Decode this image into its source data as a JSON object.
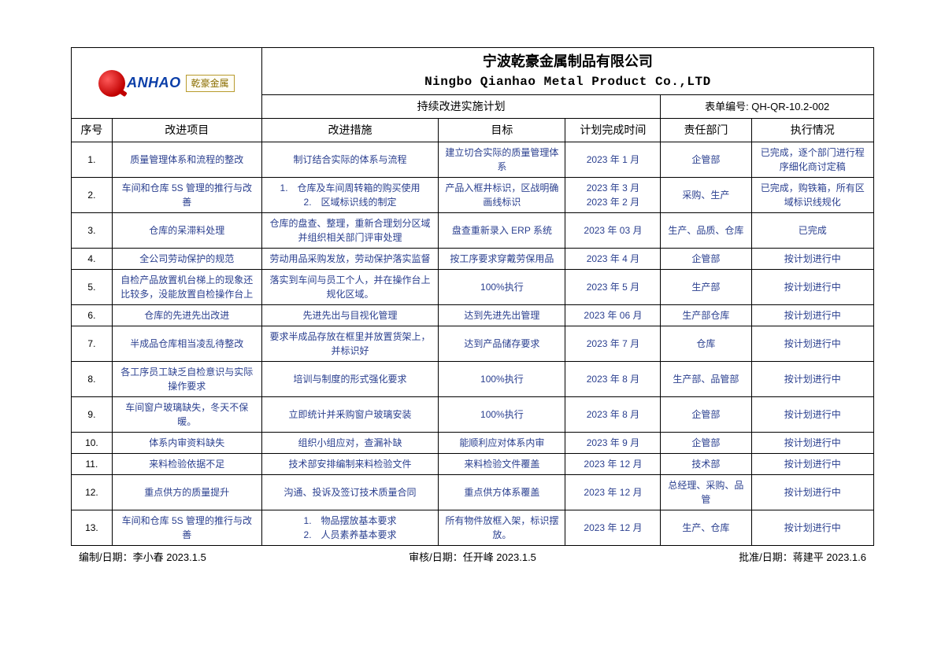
{
  "logo": {
    "brand_en": "ANHAO",
    "brand_cn": "乾豪金属"
  },
  "company": {
    "cn": "宁波乾豪金属制品有限公司",
    "en": "Ningbo Qianhao Metal Product Co.,LTD"
  },
  "subtitle": "持续改进实施计划",
  "form_no": "表单编号: QH-QR-10.2-002",
  "columns": {
    "seq": "序号",
    "item": "改进项目",
    "measure": "改进措施",
    "target": "目标",
    "date": "计划完成时间",
    "dept": "责任部门",
    "status": "执行情况"
  },
  "rows": [
    {
      "seq": "1.",
      "item": "质量管理体系和流程的整改",
      "measure": "制订结合实际的体系与流程",
      "target": "建立切合实际的质量管理体系",
      "date": "2023 年 1 月",
      "dept": "企管部",
      "status": "已完成，逐个部门进行程序细化商讨定稿"
    },
    {
      "seq": "2.",
      "item": "车间和仓库 5S 管理的推行与改善",
      "measure": "1.　仓库及车间周转箱的购买使用\n2.　区域标识线的制定",
      "target": "产品入框井标识，区战明确画线标识",
      "date": "2023 年 3 月\n2023 年 2 月",
      "dept": "采购、生产",
      "status": "已完成，购铁箱，所有区域标识线规化"
    },
    {
      "seq": "3.",
      "item": "仓库的呆滞料处理",
      "measure": "仓库的盘查、整理，重新合理划分区域并组织相关部门评审处理",
      "target": "盘查重新录入 ERP 系统",
      "date": "2023 年 03 月",
      "dept": "生产、品质、仓库",
      "status": "已完成"
    },
    {
      "seq": "4.",
      "item": "全公司劳动保护的规范",
      "measure": "劳动用品采购发放，劳动保护落实监督",
      "target": "按工序要求穿戴劳保用品",
      "date": "2023 年 4 月",
      "dept": "企管部",
      "status": "按计划进行中"
    },
    {
      "seq": "5.",
      "item": "自检产品放置机台梯上的现象还比较多，没能放置自检操作台上",
      "measure": "落实到车间与员工个人，并在操作台上规化区域。",
      "target": "100%执行",
      "date": "2023 年 5 月",
      "dept": "生产部",
      "status": "按计划进行中"
    },
    {
      "seq": "6.",
      "item": "仓库的先进先出改进",
      "measure": "先进先出与目视化管理",
      "target": "达到先进先出管理",
      "date": "2023 年 06 月",
      "dept": "生产部仓库",
      "status": "按计划进行中"
    },
    {
      "seq": "7.",
      "item": "半成品仓库相当凌乱待整改",
      "measure": "要求半成品存放在框里并放置货架上，并标识好",
      "target": "达到产品储存要求",
      "date": "2023 年 7 月",
      "dept": "仓库",
      "status": "按计划进行中"
    },
    {
      "seq": "8.",
      "item": "各工序员工缺乏自检意识与实际操作要求",
      "measure": "培训与制度的形式强化要求",
      "target": "100%执行",
      "date": "2023 年 8 月",
      "dept": "生产部、品管部",
      "status": "按计划进行中"
    },
    {
      "seq": "9.",
      "item": "车间窗户玻璃缺失，冬天不保暖。",
      "measure": "立即统计并釆购窗户玻璃安装",
      "target": "100%执行",
      "date": "2023 年 8 月",
      "dept": "企管部",
      "status": "按计划进行中"
    },
    {
      "seq": "10.",
      "item": "体系内审资料缺失",
      "measure": "组织小组应对，查漏补缺",
      "target": "能顺利应对体系内审",
      "date": "2023 年 9 月",
      "dept": "企管部",
      "status": "按计划进行中"
    },
    {
      "seq": "11.",
      "item": "来料检验依据不足",
      "measure": "技术部安排编制来料检验文件",
      "target": "来料检验文件覆盖",
      "date": "2023 年 12 月",
      "dept": "技术部",
      "status": "按计划进行中"
    },
    {
      "seq": "12.",
      "item": "重点供方的质量提升",
      "measure": "沟通、投诉及签订技术质量合同",
      "target": "重点供方体系覆盖",
      "date": "2023 年 12 月",
      "dept": "总经理、采购、品管",
      "status": "按计划进行中"
    },
    {
      "seq": "13.",
      "item": "车间和仓库 5S 管理的推行与改善",
      "measure": "1.　物品摆放基本要求\n2.　人员素养基本要求",
      "target": "所有物件放框入架，标识摆放。",
      "date": "2023 年 12 月",
      "dept": "生产、仓库",
      "status": "按计划进行中"
    }
  ],
  "footer": {
    "prepared": "编制/日期：李小春 2023.1.5",
    "reviewed": "审核/日期：任开峰 2023.1.5",
    "approved": "批准/日期：蒋建平 2023.1.6"
  },
  "colors": {
    "content_text": "#2a3f8f",
    "border": "#000000",
    "logo_red": "#c00000",
    "logo_blue": "#0b3ea8"
  }
}
